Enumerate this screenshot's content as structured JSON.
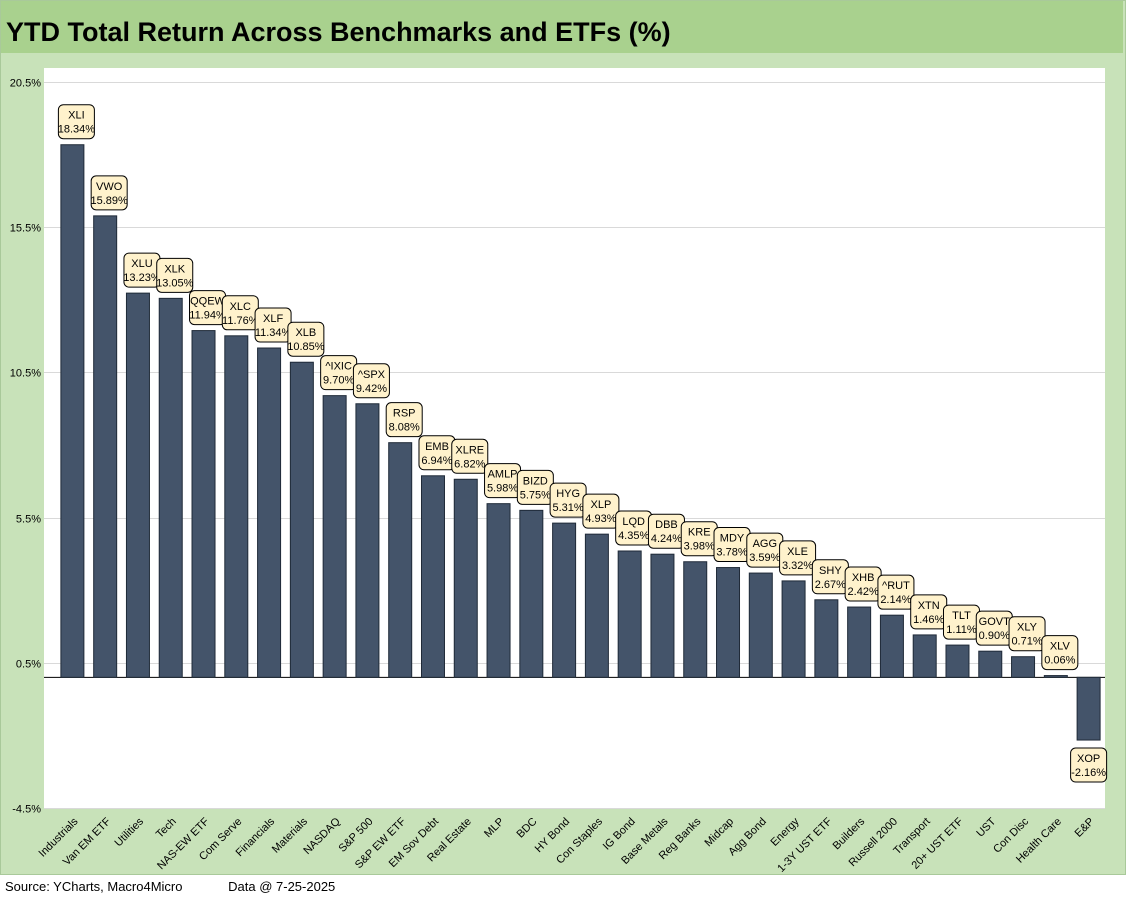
{
  "chart_data": {
    "type": "bar",
    "title": "YTD Total Return Across Benchmarks and ETFs (%)",
    "xlabel": "",
    "ylabel": "",
    "ylim": [
      -4.5,
      20.5
    ],
    "yticks": [
      -4.5,
      0.5,
      5.5,
      10.5,
      15.5,
      20.5
    ],
    "ytick_labels": [
      "-4.5%",
      "0.5%",
      "5.5%",
      "10.5%",
      "15.5%",
      "20.5%"
    ],
    "grid": true,
    "bar_color": "#44546a",
    "categories": [
      "Industrials",
      "Van EM ETF",
      "Utilities",
      "Tech",
      "NAS-EW ETF",
      "Com Serve",
      "Financials",
      "Materials",
      "NASDAQ",
      "S&P 500",
      "S&P EW ETF",
      "EM Sov Debt",
      "Real Estate",
      "MLP",
      "BDC",
      "HY Bond",
      "Con Staples",
      "IG Bond",
      "Base Metals",
      "Reg Banks",
      "Midcap",
      "Agg Bond",
      "Energy",
      "1-3Y UST ETF",
      "Builders",
      "Russell 2000",
      "Transport",
      "20+ UST ETF",
      "UST",
      "Con Disc",
      "Health Care",
      "E&P"
    ],
    "tickers": [
      "XLI",
      "VWO",
      "XLU",
      "XLK",
      "QQEW",
      "XLC",
      "XLF",
      "XLB",
      "^IXIC",
      "^SPX",
      "RSP",
      "EMB",
      "XLRE",
      "AMLP",
      "BIZD",
      "HYG",
      "XLP",
      "LQD",
      "DBB",
      "KRE",
      "MDY",
      "AGG",
      "XLE",
      "SHY",
      "XHB",
      "^RUT",
      "XTN",
      "TLT",
      "GOVT",
      "XLY",
      "XLV",
      "XOP"
    ],
    "values": [
      18.34,
      15.89,
      13.23,
      13.05,
      11.94,
      11.76,
      11.34,
      10.85,
      9.7,
      9.42,
      8.08,
      6.94,
      6.82,
      5.98,
      5.75,
      5.31,
      4.93,
      4.35,
      4.24,
      3.98,
      3.78,
      3.59,
      3.32,
      2.67,
      2.42,
      2.14,
      1.46,
      1.11,
      0.9,
      0.71,
      0.06,
      -2.16
    ],
    "data_labels": [
      "18.34%",
      "15.89%",
      "13.23%",
      "13.05%",
      "11.94%",
      "11.76%",
      "11.34%",
      "10.85%",
      "9.70%",
      "9.42%",
      "8.08%",
      "6.94%",
      "6.82%",
      "5.98%",
      "5.75%",
      "5.31%",
      "4.93%",
      "4.35%",
      "4.24%",
      "3.98%",
      "3.78%",
      "3.59%",
      "3.32%",
      "2.67%",
      "2.42%",
      "2.14%",
      "1.46%",
      "1.11%",
      "0.90%",
      "0.71%",
      "0.06%",
      "-2.16%"
    ]
  },
  "footer": {
    "source": "Source: YCharts, Macro4Micro",
    "data_as_of": "Data @ 7-25-2025"
  }
}
